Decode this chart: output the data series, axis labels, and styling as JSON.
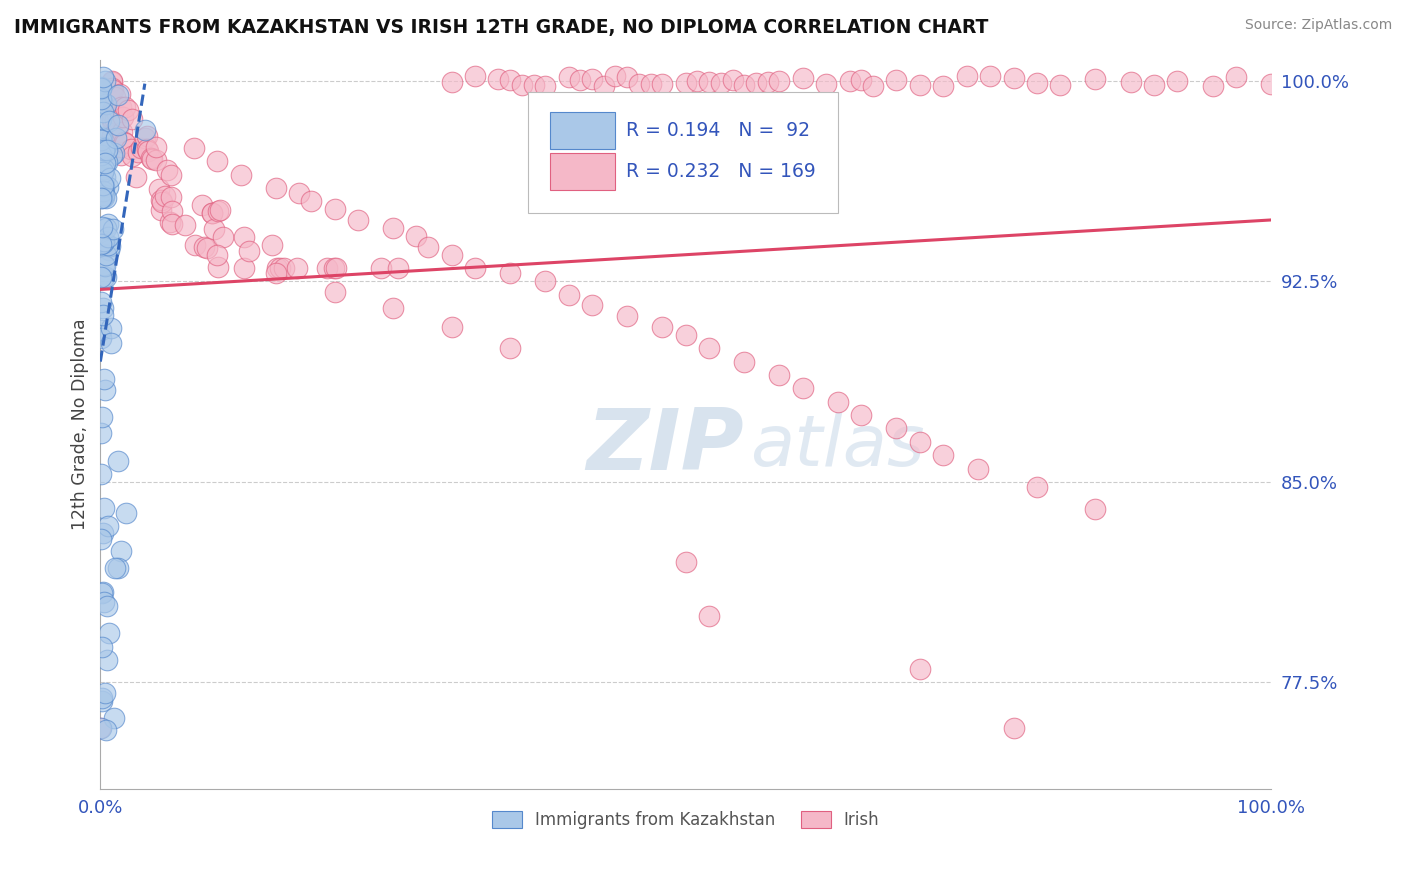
{
  "title": "IMMIGRANTS FROM KAZAKHSTAN VS IRISH 12TH GRADE, NO DIPLOMA CORRELATION CHART",
  "source": "Source: ZipAtlas.com",
  "ylabel": "12th Grade, No Diploma",
  "xlim": [
    0.0,
    1.0
  ],
  "ylim": [
    0.735,
    1.008
  ],
  "yticks": [
    0.775,
    0.85,
    0.925,
    1.0
  ],
  "ytick_labels": [
    "77.5%",
    "85.0%",
    "92.5%",
    "100.0%"
  ],
  "xtick_labels": [
    "0.0%",
    "100.0%"
  ],
  "xticks": [
    0.0,
    1.0
  ],
  "kazakhstan_R": 0.194,
  "kazakhstan_N": 92,
  "irish_R": 0.232,
  "irish_N": 169,
  "kazakhstan_color": "#aac8e8",
  "irish_color": "#f5b8c8",
  "kazakhstan_edge_color": "#5588cc",
  "irish_edge_color": "#e06080",
  "kazakhstan_line_color": "#3366bb",
  "irish_line_color": "#dd4466",
  "title_color": "#111111",
  "axis_label_color": "#3355bb",
  "legend_R_color": "#3355bb",
  "background_color": "#ffffff",
  "grid_color": "#cccccc",
  "irish_trend_x0": 0.0,
  "irish_trend_x1": 1.0,
  "irish_trend_y0": 0.922,
  "irish_trend_y1": 0.948,
  "kaz_trend_x0": 0.0,
  "kaz_trend_x1": 0.038,
  "kaz_trend_y0": 0.895,
  "kaz_trend_y1": 0.999
}
